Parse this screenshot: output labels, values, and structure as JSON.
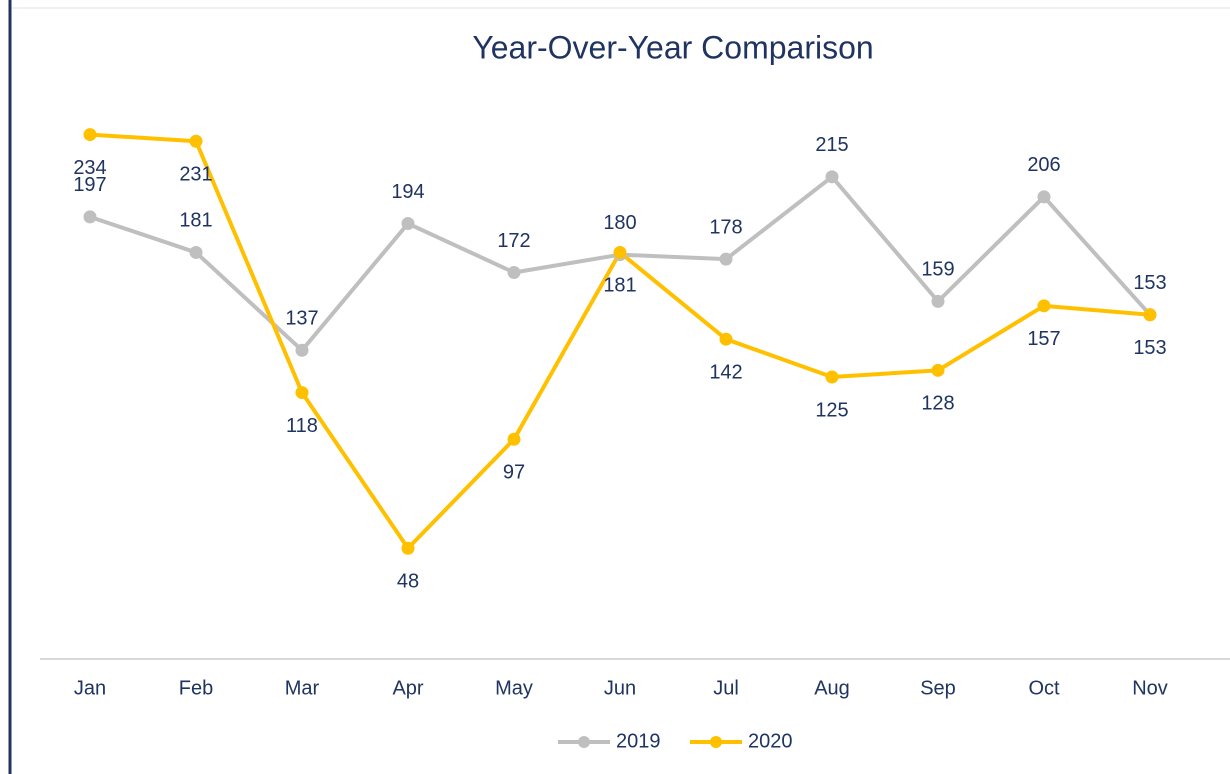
{
  "chart_data": {
    "type": "line",
    "title": "Year-Over-Year Comparison",
    "categories": [
      "Jan",
      "Feb",
      "Mar",
      "Apr",
      "May",
      "Jun",
      "Jul",
      "Aug",
      "Sep",
      "Oct",
      "Nov"
    ],
    "series": [
      {
        "name": "2019",
        "color": "#bfbfbf",
        "values": [
          197,
          181,
          137,
          194,
          172,
          180,
          178,
          215,
          159,
          206,
          153
        ]
      },
      {
        "name": "2020",
        "color": "#ffc000",
        "values": [
          234,
          231,
          118,
          48,
          97,
          181,
          142,
          125,
          128,
          157,
          153
        ]
      }
    ],
    "ylim": [
      0,
      250
    ],
    "legend": "bottom"
  }
}
